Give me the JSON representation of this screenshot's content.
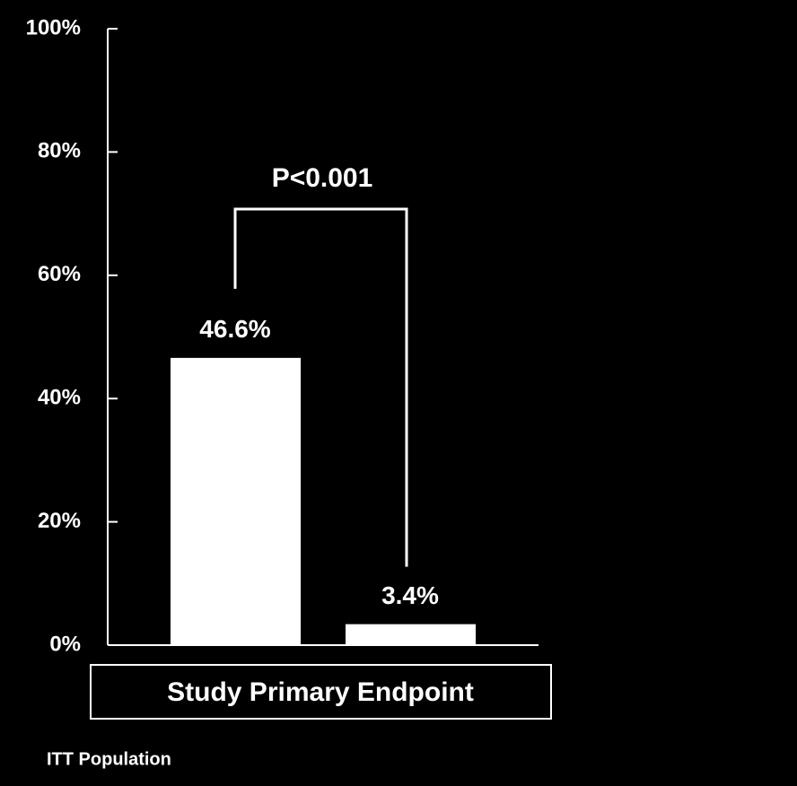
{
  "chart_data": {
    "type": "bar",
    "categories": [
      null,
      null
    ],
    "values": [
      46.6,
      3.4
    ],
    "value_labels": [
      "46.6%",
      "3.4%"
    ],
    "color": "#ffffff",
    "ylim": [
      0,
      100
    ],
    "yticks": [
      {
        "value": 0,
        "label": "0%"
      },
      {
        "value": 20,
        "label": "20%"
      },
      {
        "value": 40,
        "label": "40%"
      },
      {
        "value": 60,
        "label": "60%"
      },
      {
        "value": 80,
        "label": "80%"
      },
      {
        "value": 100,
        "label": "100%"
      }
    ],
    "xlabel": "Study Primary Endpoint",
    "annotation": "P<0.001",
    "footnote": "ITT Population"
  }
}
